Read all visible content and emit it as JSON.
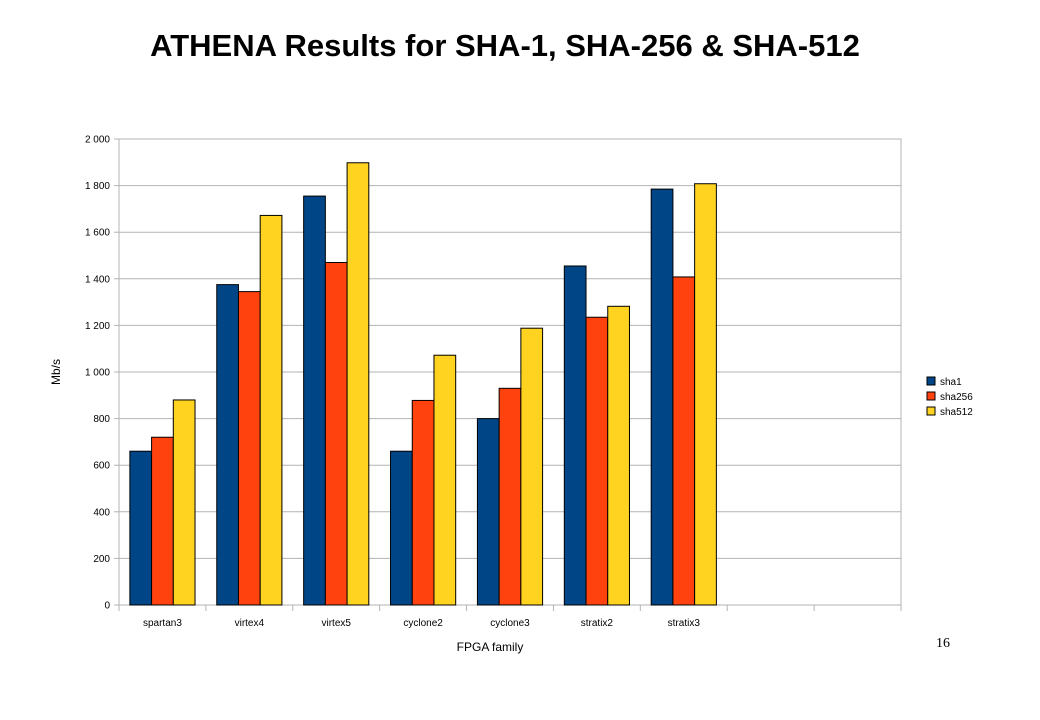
{
  "slide": {
    "title": "ATHENA Results for SHA-1, SHA-256 & SHA-512",
    "page_number": "16"
  },
  "chart_data": {
    "type": "bar",
    "categories": [
      "spartan3",
      "virtex4",
      "virtex5",
      "cyclone2",
      "cyclone3",
      "stratix2",
      "stratix3",
      "",
      ""
    ],
    "series": [
      {
        "name": "sha1",
        "color": "#004586",
        "values": [
          660,
          1375,
          1755,
          660,
          800,
          1455,
          1785,
          null,
          null
        ]
      },
      {
        "name": "sha256",
        "color": "#FF420E",
        "values": [
          720,
          1345,
          1470,
          878,
          930,
          1235,
          1408,
          null,
          null
        ]
      },
      {
        "name": "sha512",
        "color": "#FFD320",
        "values": [
          880,
          1672,
          1898,
          1072,
          1188,
          1282,
          1808,
          null,
          null
        ]
      }
    ],
    "xlabel": "FPGA family",
    "ylabel": "Mb/s",
    "ylim": [
      0,
      2000
    ],
    "yticks": [
      0,
      200,
      400,
      600,
      800,
      1000,
      1200,
      1400,
      1600,
      1800,
      2000
    ],
    "ytick_labels": [
      "0",
      "200",
      "400",
      "600",
      "800",
      "1 000",
      "1 200",
      "1 400",
      "1 600",
      "1 800",
      "2 000"
    ],
    "grid": true,
    "legend_position": "right"
  }
}
